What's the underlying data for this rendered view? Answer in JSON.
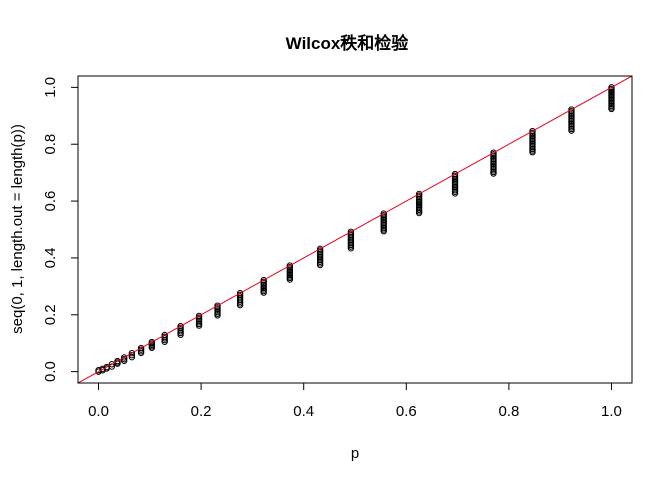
{
  "chart_data": {
    "type": "scatter",
    "title": "Wilcox秩和检验",
    "xlabel": "p",
    "ylabel": "seq(0, 1, length.out = length(p))",
    "xlim": [
      -0.04,
      1.04
    ],
    "ylim": [
      -0.04,
      1.04
    ],
    "x_ticks": [
      "0.0",
      "0.2",
      "0.4",
      "0.6",
      "0.8",
      "1.0"
    ],
    "y_ticks": [
      "0.0",
      "0.2",
      "0.4",
      "0.6",
      "0.8",
      "1.0"
    ],
    "grid": false,
    "legend": "none",
    "point_style": "open circle",
    "point_color": "#000000",
    "reference_line": {
      "type": "abline",
      "intercept": 0,
      "slope": 1,
      "color": "#e8001c"
    },
    "columns": [
      {
        "x": 0.0,
        "y_min": 0.0,
        "y_max": 0.005
      },
      {
        "x": 0.008,
        "y_min": 0.005,
        "y_max": 0.01
      },
      {
        "x": 0.016,
        "y_min": 0.011,
        "y_max": 0.016
      },
      {
        "x": 0.026,
        "y_min": 0.018,
        "y_max": 0.026
      },
      {
        "x": 0.037,
        "y_min": 0.028,
        "y_max": 0.037
      },
      {
        "x": 0.05,
        "y_min": 0.038,
        "y_max": 0.05
      },
      {
        "x": 0.065,
        "y_min": 0.051,
        "y_max": 0.065
      },
      {
        "x": 0.083,
        "y_min": 0.066,
        "y_max": 0.083
      },
      {
        "x": 0.104,
        "y_min": 0.084,
        "y_max": 0.104
      },
      {
        "x": 0.129,
        "y_min": 0.105,
        "y_max": 0.129
      },
      {
        "x": 0.16,
        "y_min": 0.13,
        "y_max": 0.16
      },
      {
        "x": 0.196,
        "y_min": 0.162,
        "y_max": 0.196
      },
      {
        "x": 0.232,
        "y_min": 0.198,
        "y_max": 0.232
      },
      {
        "x": 0.276,
        "y_min": 0.234,
        "y_max": 0.276
      },
      {
        "x": 0.322,
        "y_min": 0.278,
        "y_max": 0.322
      },
      {
        "x": 0.373,
        "y_min": 0.324,
        "y_max": 0.373
      },
      {
        "x": 0.432,
        "y_min": 0.375,
        "y_max": 0.432
      },
      {
        "x": 0.492,
        "y_min": 0.434,
        "y_max": 0.492
      },
      {
        "x": 0.556,
        "y_min": 0.494,
        "y_max": 0.556
      },
      {
        "x": 0.625,
        "y_min": 0.558,
        "y_max": 0.625
      },
      {
        "x": 0.695,
        "y_min": 0.627,
        "y_max": 0.695
      },
      {
        "x": 0.77,
        "y_min": 0.697,
        "y_max": 0.77
      },
      {
        "x": 0.846,
        "y_min": 0.772,
        "y_max": 0.846
      },
      {
        "x": 0.922,
        "y_min": 0.848,
        "y_max": 0.922
      },
      {
        "x": 1.0,
        "y_min": 0.924,
        "y_max": 1.0
      }
    ]
  }
}
